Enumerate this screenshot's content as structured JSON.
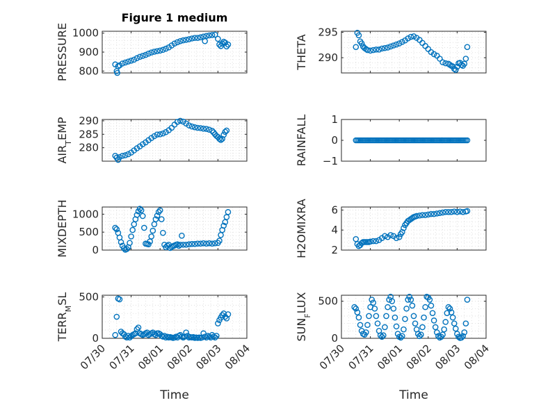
{
  "figure": {
    "title": "Figure 1 medium"
  },
  "colors": {
    "marker": "#0072BD",
    "axis": "#262626",
    "grid": "#d9d9d9"
  },
  "x_axis": {
    "ticks": [
      0,
      1,
      2,
      3,
      4,
      5
    ],
    "tick_labels": [
      "07/30",
      "07/31",
      "08/01",
      "08/02",
      "08/03",
      "08/04"
    ],
    "label": "Time",
    "range": [
      0,
      5
    ]
  },
  "chart_data": [
    {
      "type": "scatter",
      "ylabel": "PRESSURE",
      "ylim": [
        790,
        1010
      ],
      "yticks": [
        800,
        900,
        1000
      ],
      "grid": true,
      "x": [
        0.45,
        0.5,
        0.52,
        0.55,
        0.6,
        0.7,
        0.8,
        0.9,
        1.0,
        1.1,
        1.2,
        1.3,
        1.4,
        1.5,
        1.6,
        1.7,
        1.8,
        1.9,
        2.0,
        2.1,
        2.2,
        2.3,
        2.4,
        2.5,
        2.6,
        2.7,
        2.8,
        2.9,
        3.0,
        3.1,
        3.2,
        3.3,
        3.4,
        3.5,
        3.55,
        3.6,
        3.7,
        3.8,
        3.9,
        4.0,
        4.05,
        4.1,
        4.15,
        4.2,
        4.25,
        4.3,
        4.35
      ],
      "y": [
        835,
        800,
        790,
        825,
        830,
        840,
        845,
        850,
        855,
        860,
        868,
        875,
        880,
        885,
        892,
        898,
        902,
        905,
        908,
        912,
        918,
        925,
        935,
        945,
        952,
        958,
        962,
        965,
        968,
        972,
        975,
        975,
        978,
        982,
        958,
        985,
        988,
        990,
        992,
        970,
        940,
        932,
        945,
        955,
        950,
        930,
        940
      ]
    },
    {
      "type": "scatter",
      "ylabel": "THETA",
      "ylim": [
        287,
        295.2
      ],
      "yticks": [
        290,
        295
      ],
      "grid": true,
      "x": [
        0.5,
        0.55,
        0.6,
        0.65,
        0.7,
        0.75,
        0.8,
        0.85,
        0.9,
        1.0,
        1.1,
        1.2,
        1.3,
        1.4,
        1.5,
        1.6,
        1.7,
        1.8,
        1.9,
        2.0,
        2.1,
        2.2,
        2.3,
        2.4,
        2.5,
        2.6,
        2.7,
        2.8,
        2.9,
        3.0,
        3.1,
        3.2,
        3.3,
        3.4,
        3.5,
        3.6,
        3.7,
        3.75,
        3.8,
        3.85,
        3.9,
        3.95,
        4.0,
        4.05,
        4.1,
        4.15,
        4.2,
        4.25,
        4.3,
        4.35
      ],
      "y": [
        292.1,
        294.9,
        294.4,
        293.2,
        292.8,
        292.2,
        291.9,
        291.7,
        291.5,
        291.4,
        291.5,
        291.6,
        291.6,
        291.8,
        291.9,
        292.0,
        292.2,
        292.4,
        292.6,
        292.8,
        293.1,
        293.4,
        293.8,
        294.1,
        294.2,
        293.9,
        293.5,
        292.9,
        292.3,
        291.7,
        291.1,
        290.7,
        290.4,
        289.8,
        289.1,
        288.9,
        288.8,
        288.6,
        288.4,
        288.3,
        287.8,
        287.6,
        288.2,
        288.9,
        289.0,
        288.6,
        288.4,
        288.8,
        289.8,
        292.1
      ]
    },
    {
      "type": "scatter",
      "ylabel": "AIR_TEMP",
      "ylim": [
        275,
        290.5
      ],
      "yticks": [
        280,
        285,
        290
      ],
      "grid": true,
      "x": [
        0.45,
        0.5,
        0.55,
        0.6,
        0.7,
        0.8,
        0.9,
        1.0,
        1.1,
        1.2,
        1.3,
        1.4,
        1.5,
        1.6,
        1.7,
        1.8,
        1.9,
        2.0,
        2.1,
        2.2,
        2.3,
        2.4,
        2.5,
        2.6,
        2.7,
        2.8,
        2.9,
        3.0,
        3.1,
        3.2,
        3.3,
        3.4,
        3.5,
        3.6,
        3.7,
        3.8,
        3.85,
        3.9,
        3.95,
        4.0,
        4.05,
        4.1,
        4.15,
        4.2,
        4.25,
        4.3
      ],
      "y": [
        277,
        276.3,
        275.5,
        276.5,
        277,
        277.2,
        277.6,
        278.2,
        279,
        279.8,
        280.5,
        281.3,
        282,
        282.8,
        283.6,
        284.3,
        284.9,
        285,
        285.3,
        285.8,
        286.5,
        287.4,
        288.6,
        289.6,
        290,
        289.7,
        289,
        288.3,
        287.9,
        287.6,
        287.4,
        287.3,
        287.1,
        287,
        286.7,
        286.3,
        285.7,
        285,
        284.4,
        284,
        283.3,
        282.9,
        283.3,
        284.8,
        285.9,
        286.4
      ]
    },
    {
      "type": "scatter",
      "ylabel": "RAINFALL",
      "ylim": [
        -1,
        1
      ],
      "yticks": [
        -1,
        0,
        1
      ],
      "grid": false,
      "x": [
        0.5,
        0.55,
        0.6,
        0.65,
        0.7,
        0.75,
        0.8,
        0.85,
        0.9,
        0.95,
        1.0,
        1.05,
        1.1,
        1.15,
        1.2,
        1.25,
        1.3,
        1.35,
        1.4,
        1.45,
        1.5,
        1.55,
        1.6,
        1.65,
        1.7,
        1.75,
        1.8,
        1.85,
        1.9,
        1.95,
        2.0,
        2.05,
        2.1,
        2.15,
        2.2,
        2.25,
        2.3,
        2.35,
        2.4,
        2.45,
        2.5,
        2.55,
        2.6,
        2.65,
        2.7,
        2.75,
        2.8,
        2.85,
        2.9,
        2.95,
        3.0,
        3.05,
        3.1,
        3.15,
        3.2,
        3.25,
        3.3,
        3.35,
        3.4,
        3.45,
        3.5,
        3.55,
        3.6,
        3.65,
        3.7,
        3.75,
        3.8,
        3.85,
        3.9,
        3.95,
        4.0,
        4.05,
        4.1,
        4.15,
        4.2,
        4.25,
        4.3,
        4.35
      ],
      "y": [
        0,
        0,
        0,
        0,
        0,
        0,
        0,
        0,
        0,
        0,
        0,
        0,
        0,
        0,
        0,
        0,
        0,
        0,
        0,
        0,
        0,
        0,
        0,
        0,
        0,
        0,
        0,
        0,
        0,
        0,
        0,
        0,
        0,
        0,
        0,
        0,
        0,
        0,
        0,
        0,
        0,
        0,
        0,
        0,
        0,
        0,
        0,
        0,
        0,
        0,
        0,
        0,
        0,
        0,
        0,
        0,
        0,
        0,
        0,
        0,
        0,
        0,
        0,
        0,
        0,
        0,
        0,
        0,
        0,
        0,
        0,
        0,
        0,
        0,
        0,
        0,
        0,
        0
      ]
    },
    {
      "type": "scatter",
      "ylabel": "MIXDEPTH",
      "ylim": [
        0,
        1200
      ],
      "yticks": [
        0,
        500,
        1000
      ],
      "grid": true,
      "x": [
        0.45,
        0.5,
        0.55,
        0.6,
        0.65,
        0.7,
        0.75,
        0.8,
        0.85,
        0.9,
        0.95,
        1.0,
        1.05,
        1.1,
        1.15,
        1.2,
        1.25,
        1.3,
        1.35,
        1.4,
        1.45,
        1.5,
        1.55,
        1.6,
        1.65,
        1.7,
        1.75,
        1.8,
        1.85,
        1.9,
        1.95,
        2.0,
        2.05,
        2.1,
        2.15,
        2.2,
        2.25,
        2.3,
        2.35,
        2.4,
        2.45,
        2.5,
        2.55,
        2.6,
        2.65,
        2.7,
        2.75,
        2.8,
        2.9,
        3.0,
        3.1,
        3.2,
        3.3,
        3.4,
        3.5,
        3.6,
        3.7,
        3.8,
        3.9,
        4.0,
        4.05,
        4.1,
        4.15,
        4.2,
        4.25,
        4.3,
        4.35
      ],
      "y": [
        620,
        580,
        480,
        350,
        220,
        120,
        50,
        10,
        30,
        80,
        200,
        380,
        560,
        720,
        860,
        980,
        1080,
        1150,
        1110,
        950,
        620,
        180,
        170,
        160,
        240,
        380,
        540,
        720,
        860,
        960,
        1060,
        1110,
        860,
        480,
        150,
        80,
        120,
        150,
        60,
        90,
        110,
        130,
        150,
        160,
        120,
        150,
        400,
        150,
        150,
        160,
        170,
        170,
        180,
        180,
        190,
        180,
        190,
        180,
        190,
        200,
        260,
        420,
        560,
        680,
        780,
        920,
        1060
      ]
    },
    {
      "type": "scatter",
      "ylabel": "H2OMIXRA",
      "ylim": [
        2,
        6.3
      ],
      "yticks": [
        2,
        4,
        6
      ],
      "grid": true,
      "x": [
        0.5,
        0.55,
        0.6,
        0.65,
        0.7,
        0.75,
        0.8,
        0.85,
        0.9,
        0.95,
        1.0,
        1.1,
        1.2,
        1.3,
        1.4,
        1.5,
        1.6,
        1.7,
        1.8,
        1.9,
        2.0,
        2.05,
        2.1,
        2.15,
        2.2,
        2.25,
        2.3,
        2.35,
        2.4,
        2.45,
        2.5,
        2.55,
        2.6,
        2.7,
        2.8,
        2.9,
        3.0,
        3.1,
        3.2,
        3.3,
        3.4,
        3.5,
        3.6,
        3.7,
        3.8,
        3.9,
        4.0,
        4.1,
        4.2,
        4.3,
        4.35
      ],
      "y": [
        3.1,
        2.6,
        2.4,
        2.5,
        2.7,
        2.8,
        2.8,
        2.8,
        2.8,
        2.8,
        2.85,
        2.9,
        2.9,
        3.0,
        3.2,
        3.4,
        3.3,
        3.5,
        3.4,
        3.2,
        3.3,
        3.6,
        3.8,
        4.2,
        4.5,
        4.7,
        4.9,
        5.0,
        5.1,
        5.2,
        5.3,
        5.35,
        5.4,
        5.45,
        5.5,
        5.5,
        5.55,
        5.6,
        5.6,
        5.65,
        5.7,
        5.75,
        5.8,
        5.8,
        5.8,
        5.85,
        5.8,
        5.85,
        5.8,
        5.85,
        5.9
      ]
    },
    {
      "type": "scatter",
      "ylabel": "TERR_MSL",
      "ylim": [
        0,
        520
      ],
      "yticks": [
        0,
        500
      ],
      "grid": true,
      "x": [
        0.45,
        0.5,
        0.55,
        0.6,
        0.65,
        0.7,
        0.75,
        0.8,
        0.85,
        0.9,
        0.95,
        1.0,
        1.05,
        1.1,
        1.15,
        1.2,
        1.25,
        1.3,
        1.35,
        1.4,
        1.45,
        1.5,
        1.55,
        1.6,
        1.65,
        1.7,
        1.75,
        1.8,
        1.85,
        1.9,
        1.95,
        2.0,
        2.05,
        2.1,
        2.15,
        2.2,
        2.25,
        2.3,
        2.35,
        2.4,
        2.45,
        2.5,
        2.55,
        2.6,
        2.65,
        2.7,
        2.75,
        2.8,
        2.85,
        2.9,
        2.95,
        3.0,
        3.05,
        3.1,
        3.15,
        3.2,
        3.25,
        3.3,
        3.35,
        3.4,
        3.45,
        3.5,
        3.55,
        3.6,
        3.65,
        3.7,
        3.75,
        3.8,
        3.85,
        3.9,
        3.95,
        4.0,
        4.05,
        4.1,
        4.15,
        4.2,
        4.25,
        4.3,
        4.35
      ],
      "y": [
        40,
        260,
        480,
        470,
        80,
        60,
        50,
        20,
        10,
        30,
        10,
        25,
        40,
        50,
        60,
        110,
        130,
        60,
        50,
        40,
        50,
        60,
        70,
        40,
        50,
        60,
        70,
        50,
        40,
        60,
        60,
        50,
        30,
        20,
        30,
        10,
        20,
        10,
        15,
        10,
        5,
        10,
        20,
        10,
        30,
        40,
        20,
        10,
        20,
        70,
        30,
        10,
        15,
        10,
        15,
        5,
        10,
        5,
        10,
        5,
        10,
        60,
        20,
        10,
        30,
        20,
        10,
        40,
        20,
        10,
        30,
        180,
        220,
        250,
        280,
        300,
        260,
        240,
        290
      ]
    },
    {
      "type": "scatter",
      "ylabel": "SUN_FLUX",
      "ylim": [
        0,
        580
      ],
      "yticks": [
        0,
        500
      ],
      "grid": true,
      "x": [
        0.45,
        0.5,
        0.55,
        0.6,
        0.65,
        0.7,
        0.75,
        0.8,
        0.85,
        0.9,
        0.95,
        1.0,
        1.05,
        1.1,
        1.15,
        1.2,
        1.25,
        1.3,
        1.35,
        1.4,
        1.45,
        1.5,
        1.55,
        1.6,
        1.65,
        1.7,
        1.75,
        1.8,
        1.85,
        1.9,
        1.95,
        2.0,
        2.05,
        2.1,
        2.15,
        2.2,
        2.25,
        2.3,
        2.35,
        2.4,
        2.45,
        2.5,
        2.55,
        2.6,
        2.65,
        2.7,
        2.75,
        2.8,
        2.85,
        2.9,
        2.95,
        3.0,
        3.05,
        3.1,
        3.15,
        3.2,
        3.25,
        3.3,
        3.35,
        3.4,
        3.45,
        3.5,
        3.55,
        3.6,
        3.65,
        3.7,
        3.75,
        3.8,
        3.85,
        3.9,
        3.95,
        4.0,
        4.05,
        4.1,
        4.15,
        4.2,
        4.25,
        4.3,
        4.35
      ],
      "y": [
        420,
        400,
        350,
        280,
        180,
        100,
        60,
        50,
        80,
        180,
        300,
        420,
        520,
        480,
        400,
        300,
        200,
        100,
        40,
        20,
        40,
        150,
        300,
        420,
        520,
        560,
        500,
        400,
        280,
        160,
        60,
        20,
        10,
        30,
        120,
        260,
        400,
        520,
        560,
        520,
        440,
        300,
        200,
        120,
        60,
        30,
        50,
        150,
        280,
        420,
        560,
        550,
        520,
        440,
        340,
        240,
        150,
        80,
        30,
        10,
        20,
        50,
        120,
        220,
        340,
        420,
        400,
        350,
        280,
        200,
        130,
        60,
        20,
        5,
        10,
        30,
        80,
        200,
        520
      ]
    }
  ]
}
